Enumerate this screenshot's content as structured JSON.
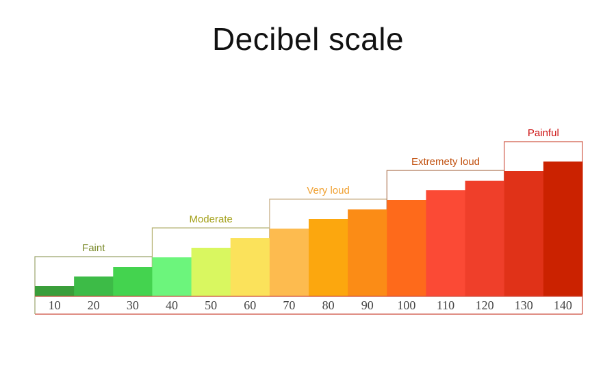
{
  "title": "Decibel scale",
  "chart_data": {
    "type": "bar",
    "categories": [
      "10",
      "20",
      "30",
      "40",
      "50",
      "60",
      "70",
      "80",
      "90",
      "100",
      "110",
      "120",
      "130",
      "140"
    ],
    "values": [
      10,
      20,
      30,
      40,
      50,
      60,
      70,
      80,
      90,
      100,
      110,
      120,
      130,
      140
    ],
    "ylim": [
      0,
      140
    ],
    "colors": [
      "#3a9e3a",
      "#3dbb47",
      "#44d34f",
      "#6cf57c",
      "#d9f760",
      "#fbe25b",
      "#fdbb4f",
      "#fca70e",
      "#fb8c16",
      "#fe6a1b",
      "#fb4a35",
      "#ef3f2a",
      "#e03218",
      "#cb2200"
    ],
    "groups": [
      {
        "label": "Faint",
        "from": 0,
        "to": 2,
        "color": "#7a8a2a",
        "box_color": "#9aa36a"
      },
      {
        "label": "Moderate",
        "from": 3,
        "to": 5,
        "color": "#a3a018",
        "box_color": "#b5b070"
      },
      {
        "label": "Very loud",
        "from": 6,
        "to": 8,
        "color": "#f0a030",
        "box_color": "#c9b08a"
      },
      {
        "label": "Extremety loud",
        "from": 9,
        "to": 11,
        "color": "#c1500e",
        "box_color": "#b07a5a"
      },
      {
        "label": "Painful",
        "from": 12,
        "to": 13,
        "color": "#cc1010",
        "box_color": "#d05a48"
      }
    ],
    "axis_color": "#cc4a3a",
    "tick_color": "#444444"
  }
}
